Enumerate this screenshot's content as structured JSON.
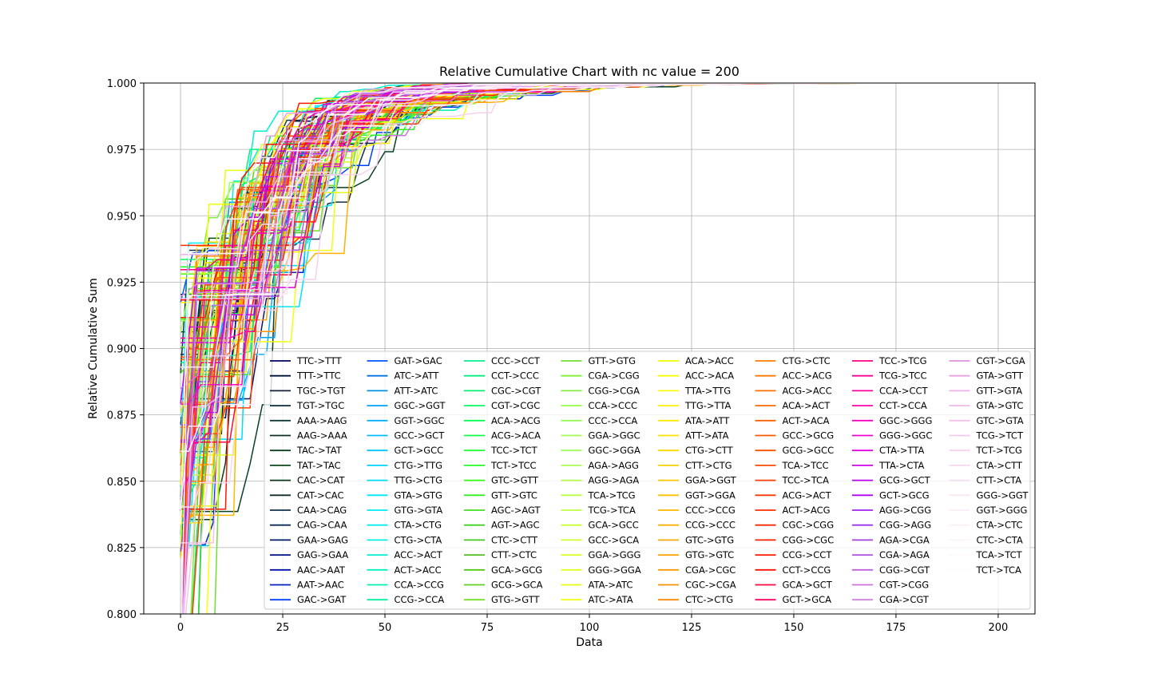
{
  "chart_data": {
    "type": "line",
    "title": "Relative Cumulative Chart with nc value = 200",
    "xlabel": "Data",
    "ylabel": "Relative Cumulative Sum",
    "xlim": [
      -9,
      209
    ],
    "ylim": [
      0.8,
      1.0
    ],
    "x_ticks": [
      0,
      25,
      50,
      75,
      100,
      125,
      150,
      175,
      200
    ],
    "x_tick_labels": [
      "0",
      "25",
      "50",
      "75",
      "100",
      "125",
      "150",
      "175",
      "200"
    ],
    "y_ticks": [
      0.8,
      0.825,
      0.85,
      0.875,
      0.9,
      0.925,
      0.95,
      0.975,
      1.0
    ],
    "y_tick_labels": [
      "0.800",
      "0.825",
      "0.850",
      "0.875",
      "0.900",
      "0.925",
      "0.950",
      "0.975",
      "1.000"
    ],
    "grid": true,
    "legend_position": "lower-right",
    "legend_columns": 8,
    "series_names": [
      "TTC->TTT",
      "TTT->TTC",
      "TGC->TGT",
      "TGT->TGC",
      "AAA->AAG",
      "AAG->AAA",
      "TAC->TAT",
      "TAT->TAC",
      "CAC->CAT",
      "CAT->CAC",
      "CAA->CAG",
      "CAG->CAA",
      "GAA->GAG",
      "GAG->GAA",
      "AAC->AAT",
      "AAT->AAC",
      "GAC->GAT",
      "GAT->GAC",
      "ATC->ATT",
      "ATT->ATC",
      "GGC->GGT",
      "GGT->GGC",
      "GCC->GCT",
      "GCT->GCC",
      "CTG->TTG",
      "TTG->CTG",
      "GTA->GTG",
      "GTG->GTA",
      "CTA->CTG",
      "CTG->CTA",
      "ACC->ACT",
      "ACT->ACC",
      "CCA->CCG",
      "CCG->CCA",
      "CCC->CCT",
      "CCT->CCC",
      "CGC->CGT",
      "CGT->CGC",
      "ACA->ACG",
      "ACG->ACA",
      "TCC->TCT",
      "TCT->TCC",
      "GTC->GTT",
      "GTT->GTC",
      "AGC->AGT",
      "AGT->AGC",
      "CTC->CTT",
      "CTT->CTC",
      "GCA->GCG",
      "GCG->GCA",
      "GTG->GTT",
      "GTT->GTG",
      "CGA->CGG",
      "CGG->CGA",
      "CCA->CCC",
      "CCC->CCA",
      "GGA->GGC",
      "GGC->GGA",
      "AGA->AGG",
      "AGG->AGA",
      "TCA->TCG",
      "TCG->TCA",
      "GCA->GCC",
      "GCC->GCA",
      "GGA->GGG",
      "GGG->GGA",
      "ATA->ATC",
      "ATC->ATA",
      "ACA->ACC",
      "ACC->ACA",
      "TTA->TTG",
      "TTG->TTA",
      "ATA->ATT",
      "ATT->ATA",
      "CTG->CTT",
      "CTT->CTG",
      "GGA->GGT",
      "GGT->GGA",
      "CCC->CCG",
      "CCG->CCC",
      "GTC->GTG",
      "GTG->GTC",
      "CGA->CGC",
      "CGC->CGA",
      "CTC->CTG",
      "CTG->CTC",
      "ACC->ACG",
      "ACG->ACC",
      "ACA->ACT",
      "ACT->ACA",
      "GCC->GCG",
      "GCG->GCC",
      "TCA->TCC",
      "TCC->TCA",
      "ACG->ACT",
      "ACT->ACG",
      "CGC->CGG",
      "CGG->CGC",
      "CCG->CCT",
      "CCT->CCG",
      "GCA->GCT",
      "GCT->GCA",
      "TCC->TCG",
      "TCG->TCC",
      "CCA->CCT",
      "CCT->CCA",
      "GGC->GGG",
      "GGG->GGC",
      "CTA->TTA",
      "TTA->CTA",
      "GCG->GCT",
      "GCT->GCG",
      "AGG->CGG",
      "CGG->AGG",
      "AGA->CGA",
      "CGA->AGA",
      "CGG->CGT",
      "CGT->CGG",
      "CGA->CGT",
      "CGT->CGA",
      "GTA->GTT",
      "GTT->GTA",
      "GTA->GTC",
      "GTC->GTA",
      "TCG->TCT",
      "TCT->TCG",
      "CTA->CTT",
      "CTT->CTA",
      "GGG->GGT",
      "GGT->GGG",
      "CTA->CTC",
      "CTC->CTA",
      "TCA->TCT",
      "TCT->TCA"
    ],
    "series_colors": [
      "#000066",
      "#001133",
      "#112233",
      "#0a2a3a",
      "#103a3a",
      "#0d3320",
      "#0a4020",
      "#0a4a1a",
      "#0a3a1a",
      "#102a2a",
      "#10304a",
      "#0a2a5a",
      "#001a6a",
      "#00108a",
      "#0010aa",
      "#0020c0",
      "#0040ff",
      "#0050ff",
      "#0070e0",
      "#0090e0",
      "#00a0ff",
      "#00b0ff",
      "#00bcff",
      "#00c8ff",
      "#00d4ff",
      "#00dcff",
      "#00e4ff",
      "#00eaff",
      "#00eef0",
      "#00f0e0",
      "#00f0d0",
      "#00f0c0",
      "#00f0b0",
      "#00f0a0",
      "#00f090",
      "#00f080",
      "#00f070",
      "#00ff60",
      "#00ff50",
      "#10ff40",
      "#20ff30",
      "#20ff20",
      "#30ff10",
      "#30f020",
      "#40e020",
      "#40d020",
      "#40c820",
      "#50c020",
      "#50c810",
      "#60d020",
      "#70e020",
      "#70e030",
      "#80f030",
      "#80f040",
      "#90ff40",
      "#90ff50",
      "#a0ff50",
      "#a0ff60",
      "#a8ff50",
      "#b0ff50",
      "#b8ff40",
      "#c0ff40",
      "#c8ff30",
      "#d0ff30",
      "#d8ff20",
      "#e0ff20",
      "#e8ff10",
      "#f0ff10",
      "#f0ff00",
      "#f8ff00",
      "#ffff00",
      "#fff000",
      "#ffe800",
      "#ffe000",
      "#ffd800",
      "#ffd000",
      "#ffc800",
      "#ffc000",
      "#ffb800",
      "#ffb000",
      "#ffa800",
      "#ffa000",
      "#ff9800",
      "#ff9000",
      "#ff8800",
      "#ff8000",
      "#ff7800",
      "#ff7000",
      "#ff6800",
      "#ff6000",
      "#ff5800",
      "#ff5000",
      "#ff4800",
      "#ff4000",
      "#ff3800",
      "#ff3000",
      "#ff2800",
      "#ff2000",
      "#ff1800",
      "#ff1000",
      "#ff0840",
      "#ff0060",
      "#ff0080",
      "#ff0090",
      "#ff00a0",
      "#ff00b0",
      "#ff00c0",
      "#f000d0",
      "#e000e0",
      "#d000e8",
      "#c000f0",
      "#b000f0",
      "#a020f0",
      "#9a30f0",
      "#a040e0",
      "#b050e0",
      "#c060e0",
      "#d070e0",
      "#d080e0",
      "#e090e0",
      "#e8a0e0",
      "#eeb0e8",
      "#f0b8e8",
      "#f2c0ea",
      "#f4c8ec",
      "#f6d0ee",
      "#f8d8f0",
      "#f9e0f2",
      "#fae6f4",
      "#fbecf6",
      "#fcf0f8",
      "#fdf4fa",
      "#fef8fc",
      "#fffafd"
    ]
  }
}
